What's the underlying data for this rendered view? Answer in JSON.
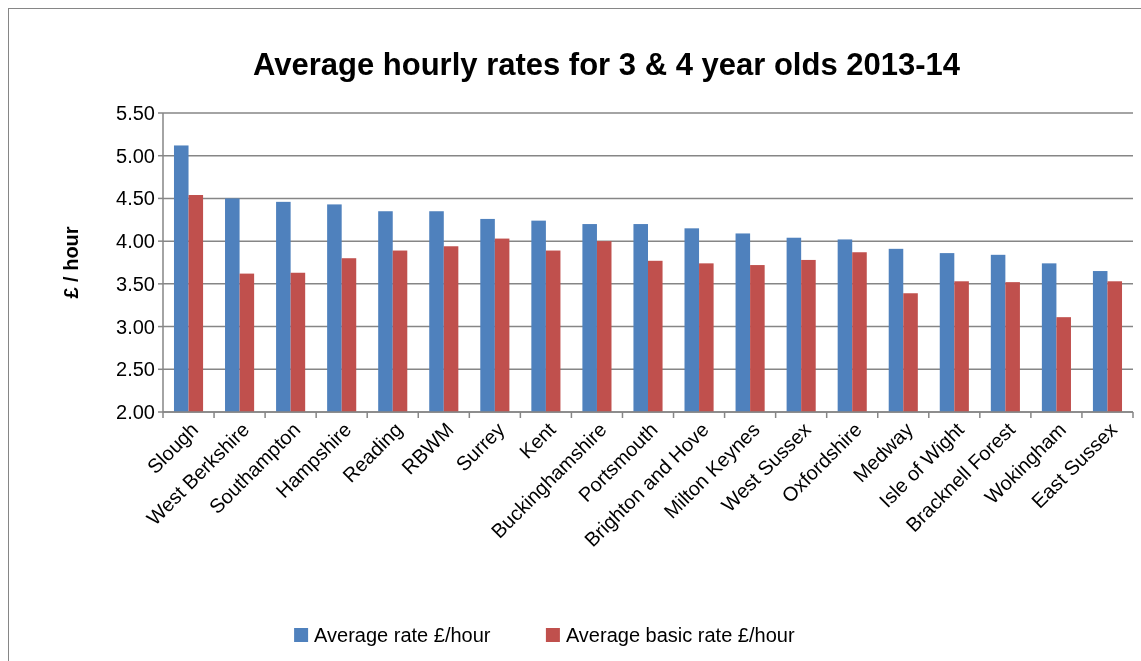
{
  "chart_data": {
    "type": "bar",
    "title": "Average hourly rates for 3 & 4 year olds 2013-14",
    "ylabel": "£ / hour",
    "categories": [
      "Slough",
      "West Berkshire",
      "Southampton",
      "Hampshire",
      "Reading",
      "RBWM",
      "Surrey",
      "Kent",
      "Buckinghamshire",
      "Portsmouth",
      "Brighton and Hove",
      "Milton Keynes",
      "West Sussex",
      "Oxfordshire",
      "Medway",
      "Isle of Wight",
      "Bracknell Forest",
      "Wokingham",
      "East Sussex"
    ],
    "series": [
      {
        "name": "Average rate £/hour",
        "color": "#4f81bd",
        "values": [
          5.12,
          4.5,
          4.46,
          4.43,
          4.35,
          4.35,
          4.26,
          4.24,
          4.2,
          4.2,
          4.15,
          4.09,
          4.04,
          4.02,
          3.91,
          3.86,
          3.84,
          3.74,
          3.65
        ]
      },
      {
        "name": "Average basic rate £/hour",
        "color": "#c0504d",
        "values": [
          4.54,
          3.62,
          3.63,
          3.8,
          3.89,
          3.94,
          4.03,
          3.89,
          4.0,
          3.77,
          3.74,
          3.72,
          3.78,
          3.87,
          3.39,
          3.53,
          3.52,
          3.11,
          3.53
        ]
      }
    ],
    "ylim": [
      2.0,
      5.5
    ],
    "yticks": [
      {
        "value": 2.0,
        "label": "2.00"
      },
      {
        "value": 2.5,
        "label": "2.50"
      },
      {
        "value": 3.0,
        "label": "3.00"
      },
      {
        "value": 3.5,
        "label": "3.50"
      },
      {
        "value": 4.0,
        "label": "4.00"
      },
      {
        "value": 4.5,
        "label": "4.50"
      },
      {
        "value": 5.0,
        "label": "5.00"
      },
      {
        "value": 5.5,
        "label": "5.50"
      }
    ],
    "grid": "y",
    "legend": "bottom"
  }
}
